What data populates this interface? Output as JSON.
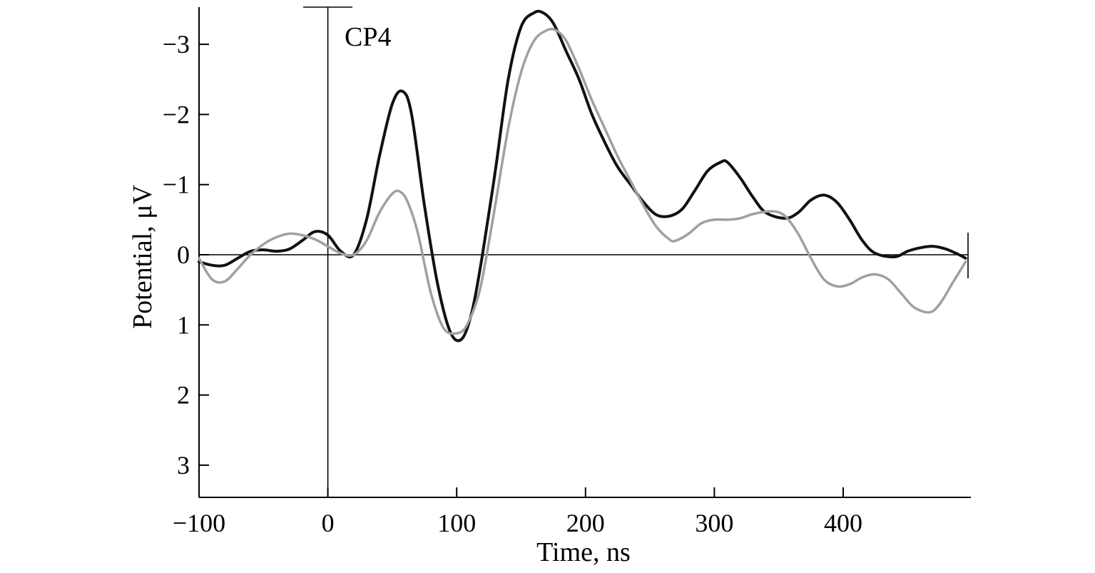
{
  "chart_data": {
    "type": "line",
    "title": "",
    "annotation": "CP4",
    "xlabel": "Time, ns",
    "ylabel": "Potential, μV",
    "xlim": [
      -100,
      500
    ],
    "ylim": [
      3.5,
      -3.5
    ],
    "y_axis_inverted": true,
    "xticks": [
      -100,
      0,
      100,
      200,
      300,
      400
    ],
    "xtick_labels": [
      "−100",
      "0",
      "100",
      "200",
      "300",
      "400"
    ],
    "yticks": [
      -3,
      -2,
      -1,
      0,
      1,
      2,
      3
    ],
    "ytick_labels": [
      "−3",
      "−2",
      "−1",
      "0",
      "1",
      "2",
      "3"
    ],
    "grid": false,
    "legend": "none",
    "series": [
      {
        "color": "#111111",
        "x": [
          -100,
          -90,
          -80,
          -70,
          -60,
          -50,
          -40,
          -30,
          -20,
          -10,
          0,
          10,
          20,
          30,
          40,
          50,
          58,
          65,
          75,
          85,
          95,
          104,
          112,
          120,
          130,
          140,
          150,
          160,
          167,
          175,
          185,
          195,
          205,
          215,
          225,
          235,
          245,
          255,
          265,
          275,
          285,
          295,
          305,
          310,
          320,
          330,
          340,
          355,
          365,
          375,
          385,
          395,
          405,
          415,
          425,
          440,
          450,
          460,
          470,
          480,
          490,
          495
        ],
        "values": [
          0.1,
          0.15,
          0.15,
          0.05,
          -0.05,
          -0.07,
          -0.05,
          -0.08,
          -0.2,
          -0.33,
          -0.28,
          -0.05,
          0.0,
          -0.5,
          -1.4,
          -2.15,
          -2.33,
          -2.0,
          -0.7,
          0.4,
          1.1,
          1.2,
          0.8,
          0.0,
          -1.2,
          -2.5,
          -3.25,
          -3.45,
          -3.45,
          -3.3,
          -2.9,
          -2.5,
          -2.0,
          -1.6,
          -1.25,
          -1.0,
          -0.75,
          -0.57,
          -0.55,
          -0.65,
          -0.92,
          -1.2,
          -1.32,
          -1.32,
          -1.1,
          -0.82,
          -0.6,
          -0.52,
          -0.6,
          -0.78,
          -0.85,
          -0.75,
          -0.5,
          -0.2,
          -0.02,
          0.03,
          -0.05,
          -0.1,
          -0.12,
          -0.08,
          0.0,
          0.05
        ]
      },
      {
        "color": "#a0a0a0",
        "x": [
          -100,
          -90,
          -80,
          -70,
          -60,
          -50,
          -40,
          -30,
          -20,
          -10,
          0,
          10,
          20,
          30,
          40,
          50,
          56,
          62,
          70,
          80,
          90,
          100,
          108,
          118,
          128,
          140,
          150,
          160,
          170,
          177,
          185,
          195,
          205,
          215,
          225,
          235,
          245,
          255,
          265,
          270,
          280,
          290,
          300,
          310,
          320,
          330,
          345,
          355,
          365,
          375,
          385,
          395,
          405,
          415,
          425,
          435,
          445,
          455,
          467,
          475,
          485,
          495
        ],
        "values": [
          0.05,
          0.35,
          0.38,
          0.2,
          0.0,
          -0.15,
          -0.25,
          -0.3,
          -0.28,
          -0.22,
          -0.12,
          -0.02,
          0.0,
          -0.2,
          -0.6,
          -0.87,
          -0.9,
          -0.75,
          -0.3,
          0.55,
          1.05,
          1.12,
          1.0,
          0.5,
          -0.5,
          -1.8,
          -2.6,
          -3.05,
          -3.2,
          -3.2,
          -3.05,
          -2.65,
          -2.2,
          -1.8,
          -1.4,
          -1.05,
          -0.7,
          -0.4,
          -0.22,
          -0.2,
          -0.3,
          -0.45,
          -0.5,
          -0.5,
          -0.52,
          -0.58,
          -0.62,
          -0.55,
          -0.3,
          0.05,
          0.35,
          0.45,
          0.42,
          0.32,
          0.28,
          0.35,
          0.55,
          0.75,
          0.82,
          0.7,
          0.4,
          0.1
        ]
      }
    ]
  }
}
